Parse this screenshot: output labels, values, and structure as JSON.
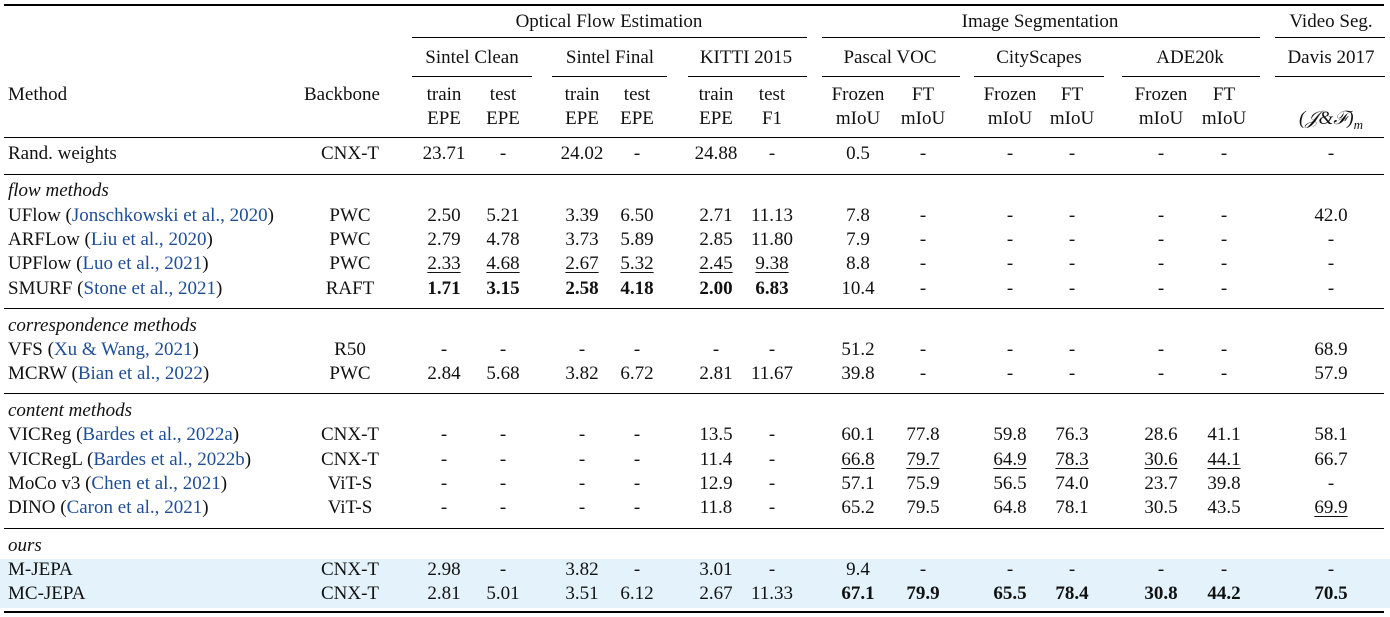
{
  "header": {
    "groups": [
      "Optical Flow Estimation",
      "Image Segmentation",
      "Video Seg."
    ],
    "subgroups": [
      "Sintel Clean",
      "Sintel Final",
      "KITTI 2015",
      "Pascal VOC",
      "CityScapes",
      "ADE20k",
      "Davis 2017"
    ],
    "method": "Method",
    "backbone": "Backbone",
    "metric_top": [
      "train",
      "test",
      "train",
      "test",
      "train",
      "test",
      "Frozen",
      "FT",
      "Frozen",
      "FT",
      "Frozen",
      "FT"
    ],
    "metric_bottom": [
      "EPE",
      "EPE",
      "EPE",
      "EPE",
      "EPE",
      "F1",
      "mIoU",
      "mIoU",
      "mIoU",
      "mIoU",
      "mIoU",
      "mIoU"
    ],
    "davis_metric": "(𝒥&ℱ)",
    "davis_sub": "m"
  },
  "sections": [
    "flow methods",
    "correspondence methods",
    "content methods",
    "ours"
  ],
  "rows": [
    {
      "name": "Rand. weights",
      "cite": "",
      "year": "",
      "backbone": "CNX-T",
      "values": [
        "23.71",
        "-",
        "24.02",
        "-",
        "24.88",
        "-",
        "0.5",
        "-",
        "-",
        "-",
        "-",
        "-",
        "-"
      ]
    },
    {
      "name": "UFlow",
      "cite": "Jonschkowski et al., ",
      "year": "2020",
      "backbone": "PWC",
      "values": [
        "2.50",
        "5.21",
        "3.39",
        "6.50",
        "2.71",
        "11.13",
        "7.8",
        "-",
        "-",
        "-",
        "-",
        "-",
        "42.0"
      ]
    },
    {
      "name": "ARFLow",
      "cite": "Liu et al., ",
      "year": "2020",
      "backbone": "PWC",
      "values": [
        "2.79",
        "4.78",
        "3.73",
        "5.89",
        "2.85",
        "11.80",
        "7.9",
        "-",
        "-",
        "-",
        "-",
        "-",
        "-"
      ]
    },
    {
      "name": "UPFlow",
      "cite": "Luo et al., ",
      "year": "2021",
      "backbone": "PWC",
      "values": [
        "2.33",
        "4.68",
        "2.67",
        "5.32",
        "2.45",
        "9.38",
        "8.8",
        "-",
        "-",
        "-",
        "-",
        "-",
        "-"
      ]
    },
    {
      "name": "SMURF",
      "cite": "Stone et al., ",
      "year": "2021",
      "backbone": "RAFT",
      "values": [
        "1.71",
        "3.15",
        "2.58",
        "4.18",
        "2.00",
        "6.83",
        "10.4",
        "-",
        "-",
        "-",
        "-",
        "-",
        "-"
      ]
    },
    {
      "name": "VFS",
      "cite": "Xu & Wang, ",
      "year": "2021",
      "backbone": "R50",
      "values": [
        "-",
        "-",
        "-",
        "-",
        "-",
        "-",
        "51.2",
        "-",
        "-",
        "-",
        "-",
        "-",
        "68.9"
      ]
    },
    {
      "name": "MCRW",
      "cite": "Bian et al., ",
      "year": "2022",
      "backbone": "PWC",
      "values": [
        "2.84",
        "5.68",
        "3.82",
        "6.72",
        "2.81",
        "11.67",
        "39.8",
        "-",
        "-",
        "-",
        "-",
        "-",
        "57.9"
      ]
    },
    {
      "name": "VICReg",
      "cite": "Bardes et al., ",
      "year": "2022a",
      "backbone": "CNX-T",
      "values": [
        "-",
        "-",
        "-",
        "-",
        "13.5",
        "-",
        "60.1",
        "77.8",
        "59.8",
        "76.3",
        "28.6",
        "41.1",
        "58.1"
      ]
    },
    {
      "name": "VICRegL",
      "cite": "Bardes et al., ",
      "year": "2022b",
      "backbone": "CNX-T",
      "values": [
        "-",
        "-",
        "-",
        "-",
        "11.4",
        "-",
        "66.8",
        "79.7",
        "64.9",
        "78.3",
        "30.6",
        "44.1",
        "66.7"
      ]
    },
    {
      "name": "MoCo v3",
      "cite": "Chen et al., ",
      "year": "2021",
      "backbone": "ViT-S",
      "values": [
        "-",
        "-",
        "-",
        "-",
        "12.9",
        "-",
        "57.1",
        "75.9",
        "56.5",
        "74.0",
        "23.7",
        "39.8",
        "-"
      ]
    },
    {
      "name": "DINO",
      "cite": "Caron et al., ",
      "year": "2021",
      "backbone": "ViT-S",
      "values": [
        "-",
        "-",
        "-",
        "-",
        "11.8",
        "-",
        "65.2",
        "79.5",
        "64.8",
        "78.1",
        "30.5",
        "43.5",
        "69.9"
      ]
    },
    {
      "name": "M-JEPA",
      "cite": "",
      "year": "",
      "backbone": "CNX-T",
      "values": [
        "2.98",
        "-",
        "3.82",
        "-",
        "3.01",
        "-",
        "9.4",
        "-",
        "-",
        "-",
        "-",
        "-",
        "-"
      ]
    },
    {
      "name": "MC-JEPA",
      "cite": "",
      "year": "",
      "backbone": "CNX-T",
      "values": [
        "2.81",
        "5.01",
        "3.51",
        "6.12",
        "2.67",
        "11.33",
        "67.1",
        "79.9",
        "65.5",
        "78.4",
        "30.8",
        "44.2",
        "70.5"
      ]
    }
  ],
  "bold_cells": [
    [
      4,
      0
    ],
    [
      4,
      1
    ],
    [
      4,
      2
    ],
    [
      4,
      3
    ],
    [
      4,
      4
    ],
    [
      4,
      5
    ],
    [
      12,
      6
    ],
    [
      12,
      7
    ],
    [
      12,
      8
    ],
    [
      12,
      9
    ],
    [
      12,
      10
    ],
    [
      12,
      11
    ],
    [
      12,
      12
    ]
  ],
  "underline_cells": [
    [
      3,
      0
    ],
    [
      3,
      1
    ],
    [
      3,
      2
    ],
    [
      3,
      3
    ],
    [
      3,
      4
    ],
    [
      3,
      5
    ],
    [
      8,
      6
    ],
    [
      8,
      7
    ],
    [
      8,
      8
    ],
    [
      8,
      9
    ],
    [
      8,
      10
    ],
    [
      8,
      11
    ],
    [
      10,
      12
    ]
  ],
  "highlight_rows": [
    11,
    12
  ],
  "colors": {
    "citation": "#1f4e96",
    "highlight": "#e3f2fb",
    "rule": "#000000"
  }
}
